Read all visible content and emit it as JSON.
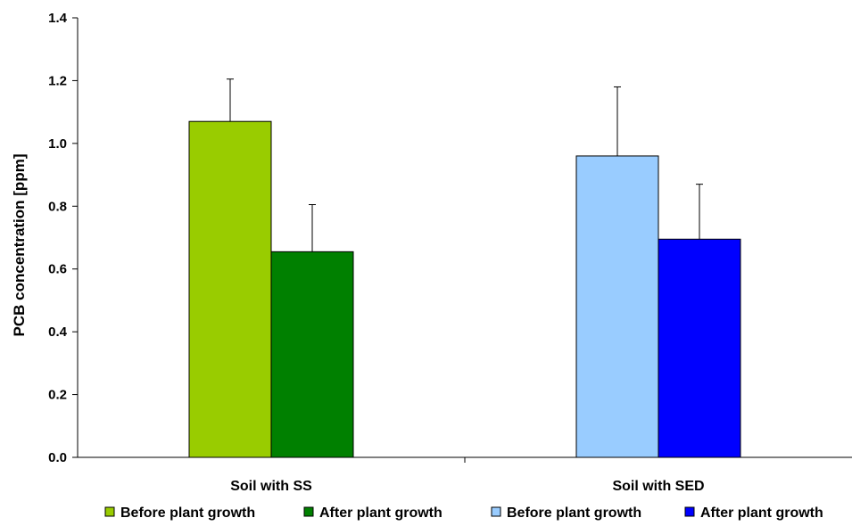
{
  "chart_data": {
    "type": "bar",
    "title": "",
    "xlabel": "",
    "ylabel": "PCB concentration [ppm]",
    "categories": [
      "Soil with SS",
      "Soil with SED"
    ],
    "ylim": [
      0,
      1.4
    ],
    "yticks": [
      "0.0",
      "0.2",
      "0.4",
      "0.6",
      "0.8",
      "1.0",
      "1.2",
      "1.4"
    ],
    "grid": false,
    "legend_position": "bottom",
    "bars": [
      {
        "category_index": 0,
        "legend_label": "Before plant growth",
        "color": "#99cc00",
        "value": 1.07,
        "error": 0.135
      },
      {
        "category_index": 0,
        "legend_label": "After plant growth",
        "color": "#008000",
        "value": 0.655,
        "error": 0.15
      },
      {
        "category_index": 1,
        "legend_label": "Before plant growth",
        "color": "#99ccff",
        "value": 0.96,
        "error": 0.22
      },
      {
        "category_index": 1,
        "legend_label": "After plant growth",
        "color": "#0000ff",
        "value": 0.695,
        "error": 0.175
      }
    ]
  }
}
